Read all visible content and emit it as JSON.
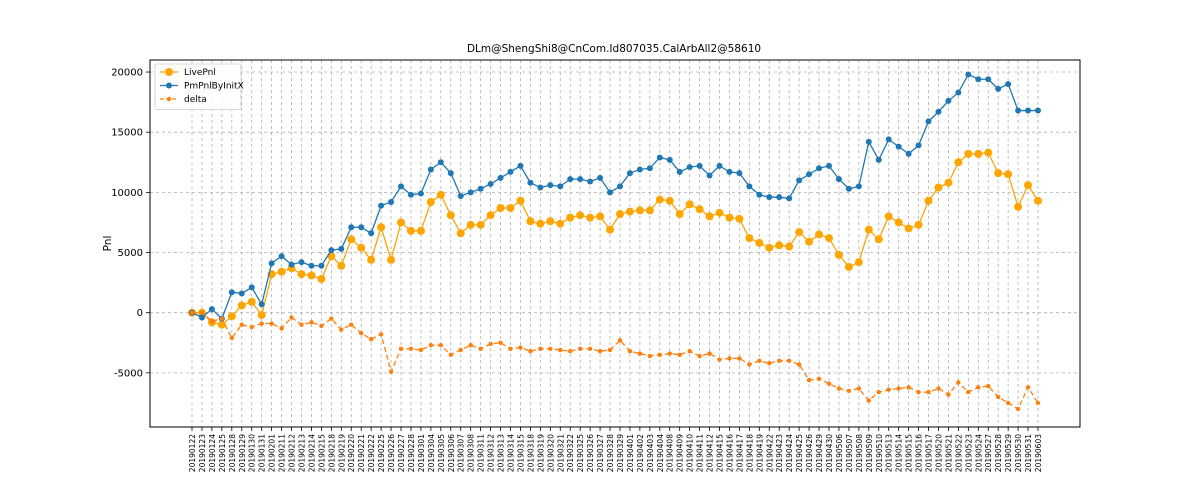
{
  "chart_data": {
    "type": "line",
    "title": "DLm@ShengShi8@CnCom.Id807035.CalArbAll2@58610",
    "xlabel": "",
    "ylabel": "Pnl",
    "ylim": [
      -9500,
      21000
    ],
    "yticks": [
      -5000,
      0,
      5000,
      10000,
      15000,
      20000
    ],
    "grid": true,
    "legend_position": "top-left",
    "x": [
      "20190122",
      "20190123",
      "20190124",
      "20190125",
      "20190128",
      "20190129",
      "20190130",
      "20190131",
      "20190201",
      "20190211",
      "20190212",
      "20190213",
      "20190214",
      "20190215",
      "20190218",
      "20190219",
      "20190220",
      "20190221",
      "20190222",
      "20190225",
      "20190226",
      "20190227",
      "20190228",
      "20190301",
      "20190304",
      "20190305",
      "20190306",
      "20190307",
      "20190308",
      "20190311",
      "20190312",
      "20190313",
      "20190314",
      "20190315",
      "20190318",
      "20190319",
      "20190320",
      "20190321",
      "20190322",
      "20190325",
      "20190326",
      "20190327",
      "20190328",
      "20190329",
      "20190401",
      "20190402",
      "20190403",
      "20190404",
      "20190408",
      "20190409",
      "20190410",
      "20190411",
      "20190412",
      "20190415",
      "20190416",
      "20190417",
      "20190418",
      "20190419",
      "20190422",
      "20190423",
      "20190424",
      "20190425",
      "20190426",
      "20190429",
      "20190430",
      "20190506",
      "20190507",
      "20190508",
      "20190509",
      "20190510",
      "20190513",
      "20190514",
      "20190515",
      "20190516",
      "20190517",
      "20190520",
      "20190521",
      "20190522",
      "20190523",
      "20190524",
      "20190527",
      "20190528",
      "20190529",
      "20190530",
      "20190531",
      "20190603"
    ],
    "series": [
      {
        "name": "LivePnl",
        "color": "#ffa500",
        "style": "solid",
        "marker": "circle-large",
        "values": [
          0,
          0,
          -800,
          -1000,
          -300,
          600,
          900,
          -200,
          3200,
          3400,
          3700,
          3200,
          3100,
          2800,
          4700,
          3900,
          6100,
          5400,
          4400,
          7100,
          4400,
          7500,
          6800,
          6800,
          9200,
          9800,
          8100,
          6600,
          7300,
          7300,
          8100,
          8700,
          8700,
          9300,
          7600,
          7400,
          7600,
          7400,
          7900,
          8100,
          7900,
          8000,
          6900,
          8200,
          8400,
          8500,
          8500,
          9400,
          9300,
          8200,
          9000,
          8600,
          8000,
          8300,
          7900,
          7800,
          6200,
          5800,
          5400,
          5600,
          5500,
          6700,
          5900,
          6500,
          6200,
          4800,
          3800,
          4200,
          6900,
          6100,
          8000,
          7500,
          7000,
          7300,
          9300,
          10400,
          10800,
          12500,
          13200,
          13200,
          13300,
          11600,
          11500,
          8800,
          10600,
          9300
        ]
      },
      {
        "name": "PmPnlByInitX",
        "color": "#1f77b4",
        "style": "solid",
        "marker": "circle",
        "values": [
          0,
          -400,
          300,
          -500,
          1700,
          1600,
          2100,
          700,
          4100,
          4700,
          4000,
          4200,
          3900,
          3900,
          5200,
          5300,
          7100,
          7100,
          6600,
          8900,
          9200,
          10500,
          9800,
          9900,
          11900,
          12500,
          11600,
          9700,
          10000,
          10300,
          10700,
          11200,
          11700,
          12200,
          10800,
          10400,
          10600,
          10500,
          11100,
          11100,
          10900,
          11200,
          10000,
          10500,
          11600,
          11900,
          12000,
          12900,
          12700,
          11700,
          12100,
          12200,
          11400,
          12200,
          11700,
          11600,
          10500,
          9800,
          9600,
          9600,
          9500,
          11000,
          11500,
          12000,
          12200,
          11100,
          10300,
          10500,
          14200,
          12700,
          14400,
          13800,
          13200,
          13900,
          15900,
          16700,
          17600,
          18300,
          19800,
          19400,
          19400,
          18600,
          19000,
          16800,
          16800,
          16800
        ]
      },
      {
        "name": "delta",
        "color": "#ff7f0e",
        "style": "dashed",
        "marker": "circle-small",
        "values": [
          0,
          0,
          -700,
          -500,
          -2100,
          -1000,
          -1200,
          -900,
          -900,
          -1300,
          -400,
          -1000,
          -800,
          -1100,
          -500,
          -1400,
          -1000,
          -1700,
          -2200,
          -1800,
          -4900,
          -3000,
          -3000,
          -3100,
          -2700,
          -2700,
          -3500,
          -3100,
          -2700,
          -3000,
          -2600,
          -2500,
          -3000,
          -2900,
          -3200,
          -3000,
          -3000,
          -3100,
          -3200,
          -3000,
          -3000,
          -3200,
          -3100,
          -2300,
          -3200,
          -3400,
          -3600,
          -3500,
          -3400,
          -3500,
          -3200,
          -3600,
          -3400,
          -3900,
          -3800,
          -3800,
          -4300,
          -4000,
          -4200,
          -4000,
          -4000,
          -4300,
          -5600,
          -5500,
          -5900,
          -6300,
          -6500,
          -6300,
          -7300,
          -6600,
          -6400,
          -6300,
          -6200,
          -6600,
          -6600,
          -6300,
          -6800,
          -5800,
          -6600,
          -6200,
          -6100,
          -7000,
          -7500,
          -8000,
          -6200,
          -7500
        ]
      }
    ]
  }
}
